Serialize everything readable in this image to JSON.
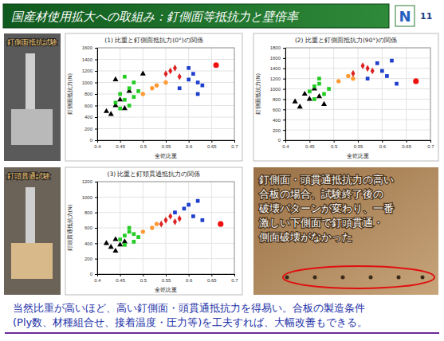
{
  "slide": {
    "title": "国産材使用拡大への取組み：釘側面等抵抗力と壁倍率",
    "page": "11",
    "logo": "N",
    "photo_labels": [
      "釘側面抵抗試験",
      "釘頭貫通試験"
    ],
    "photo_note": [
      "釘側面・頭貫通抵抗力の高い",
      "合板の場合、試験終了後の",
      "破壊パターンが変わり、一番",
      "激しい下側面で釘頭貫通・",
      "側面破壊がなかった"
    ],
    "conclusion": [
      "当然比重が高いほど、高い釘側面・頭貫通抵抗力を得易い。合板の製造条件",
      "(Ply数、材種組合せ、接着温度・圧力等)を工夫すれば、大幅改善もできる。"
    ]
  },
  "chart_data": [
    {
      "type": "scatter",
      "title": "(1) 比重と釘側面抵抗力(0°)の関係",
      "x_label": "全乾比重",
      "y_label": "釘側面抵抗力(N)",
      "xlim": [
        0.4,
        0.7
      ],
      "xticks": [
        0.4,
        0.45,
        0.5,
        0.55,
        0.6,
        0.65,
        0.7
      ],
      "ylim": [
        0,
        1600
      ],
      "yticks": [
        0,
        200,
        400,
        600,
        800,
        1000,
        1200,
        1400,
        1600
      ],
      "grid": true,
      "series": [
        {
          "color": "#000000",
          "marker": "triangle",
          "x": [
            0.42,
            0.43,
            0.44,
            0.45,
            0.46,
            0.47,
            0.44,
            0.5
          ],
          "values": [
            500,
            450,
            600,
            700,
            550,
            850,
            1050,
            1150
          ]
        },
        {
          "color": "#22cc22",
          "marker": "square",
          "x": [
            0.44,
            0.45,
            0.46,
            0.47,
            0.48,
            0.46,
            0.47,
            0.49,
            0.45,
            0.48
          ],
          "values": [
            650,
            800,
            700,
            900,
            1000,
            1100,
            600,
            850,
            550,
            750
          ]
        },
        {
          "color": "#ff9933",
          "marker": "circle",
          "x": [
            0.5,
            0.52,
            0.55,
            0.53
          ],
          "values": [
            800,
            900,
            1000,
            950
          ]
        },
        {
          "color": "#dd2222",
          "marker": "diamond",
          "x": [
            0.55,
            0.56,
            0.57,
            0.58
          ],
          "values": [
            1150,
            1200,
            1250,
            1100
          ]
        },
        {
          "color": "#1f3fcc",
          "marker": "square",
          "x": [
            0.58,
            0.6,
            0.61,
            0.62,
            0.63,
            0.6,
            0.62
          ],
          "values": [
            900,
            1050,
            1150,
            1000,
            950,
            1250,
            800
          ]
        },
        {
          "color": "#ee1111",
          "marker": "circle",
          "x": [
            0.66
          ],
          "values": [
            1300
          ]
        }
      ]
    },
    {
      "type": "scatter",
      "title": "(2) 比重と釘側面抵抗力(90°)の関係",
      "x_label": "全乾比重",
      "y_label": "釘側面抵抗力(N)",
      "xlim": [
        0.4,
        0.7
      ],
      "xticks": [
        0.4,
        0.45,
        0.5,
        0.55,
        0.6,
        0.65,
        0.7
      ],
      "ylim": [
        0,
        1800
      ],
      "yticks": [
        0,
        200,
        400,
        600,
        800,
        1000,
        1200,
        1400,
        1600,
        1800
      ],
      "grid": true,
      "series": [
        {
          "color": "#000000",
          "marker": "triangle",
          "x": [
            0.42,
            0.43,
            0.44,
            0.45,
            0.46,
            0.47,
            0.48
          ],
          "values": [
            750,
            650,
            900,
            800,
            1000,
            850,
            700
          ]
        },
        {
          "color": "#22cc22",
          "marker": "square",
          "x": [
            0.45,
            0.46,
            0.47,
            0.48,
            0.49,
            0.47,
            0.46
          ],
          "values": [
            950,
            1050,
            1100,
            900,
            1000,
            1200,
            800
          ]
        },
        {
          "color": "#ff9933",
          "marker": "circle",
          "x": [
            0.51,
            0.53,
            0.54
          ],
          "values": [
            1150,
            1250,
            1200
          ]
        },
        {
          "color": "#dd2222",
          "marker": "diamond",
          "x": [
            0.54,
            0.56,
            0.57,
            0.58
          ],
          "values": [
            1300,
            1450,
            1400,
            1350
          ]
        },
        {
          "color": "#1f3fcc",
          "marker": "square",
          "x": [
            0.57,
            0.59,
            0.6,
            0.61,
            0.62,
            0.63
          ],
          "values": [
            1200,
            1500,
            1350,
            1250,
            1550,
            1100
          ]
        },
        {
          "color": "#ee1111",
          "marker": "circle",
          "x": [
            0.67
          ],
          "values": [
            1150
          ]
        }
      ]
    },
    {
      "type": "scatter",
      "title": "(3) 比重と釘頭貫通抵抗力の関係",
      "x_label": "全乾比重",
      "y_label": "釘頭貫通抵抗力(N)",
      "xlim": [
        0.4,
        0.7
      ],
      "xticks": [
        0.4,
        0.45,
        0.5,
        0.55,
        0.6,
        0.65,
        0.7
      ],
      "ylim": [
        0,
        1200
      ],
      "yticks": [
        0,
        200,
        400,
        600,
        800,
        1000,
        1200
      ],
      "grid": true,
      "series": [
        {
          "color": "#000000",
          "marker": "triangle",
          "x": [
            0.42,
            0.43,
            0.44,
            0.45,
            0.46,
            0.44
          ],
          "values": [
            400,
            350,
            450,
            380,
            420,
            300
          ]
        },
        {
          "color": "#22cc22",
          "marker": "square",
          "x": [
            0.45,
            0.46,
            0.47,
            0.48,
            0.49,
            0.47,
            0.46,
            0.48
          ],
          "values": [
            450,
            500,
            550,
            420,
            480,
            600,
            380,
            520
          ]
        },
        {
          "color": "#ff9933",
          "marker": "circle",
          "x": [
            0.5,
            0.52,
            0.53
          ],
          "values": [
            550,
            600,
            650
          ]
        },
        {
          "color": "#dd2222",
          "marker": "diamond",
          "x": [
            0.54,
            0.55,
            0.56,
            0.57,
            0.58
          ],
          "values": [
            650,
            700,
            750,
            680,
            720
          ]
        },
        {
          "color": "#1f3fcc",
          "marker": "square",
          "x": [
            0.57,
            0.59,
            0.6,
            0.61,
            0.62,
            0.63
          ],
          "values": [
            800,
            850,
            900,
            750,
            950,
            700
          ]
        },
        {
          "color": "#ee1111",
          "marker": "circle",
          "x": [
            0.67
          ],
          "values": [
            650
          ]
        }
      ]
    }
  ]
}
